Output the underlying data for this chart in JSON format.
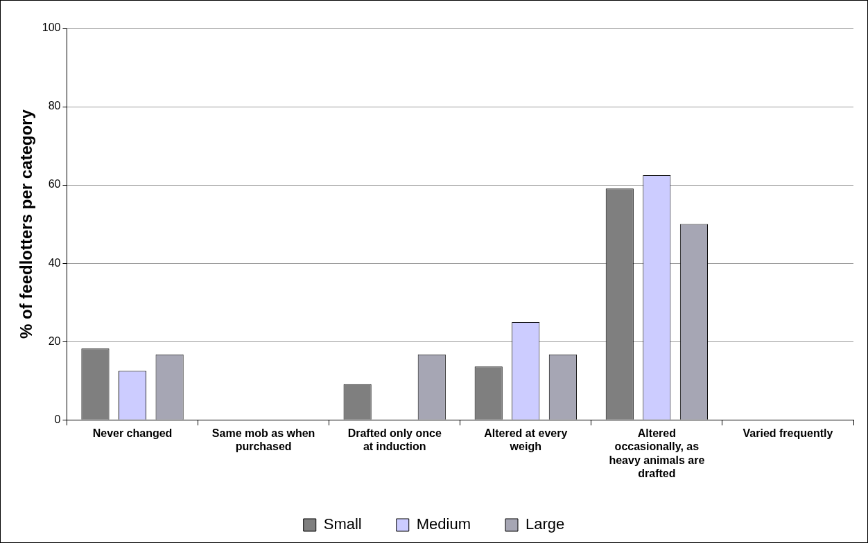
{
  "chart_data": {
    "type": "bar",
    "ylabel": "% of feedlotters per category",
    "categories": [
      "Never changed",
      "Same mob as when purchased",
      "Drafted only once at induction",
      "Altered at every weigh",
      "Altered occasionally, as heavy animals are drafted",
      "Varied frequently"
    ],
    "series": [
      {
        "name": "Small",
        "color": "#7f7f7f",
        "values": [
          18.2,
          0,
          9.1,
          13.6,
          59.1,
          0
        ]
      },
      {
        "name": "Medium",
        "color": "#ccccff",
        "values": [
          12.5,
          0,
          0,
          25,
          62.5,
          0
        ]
      },
      {
        "name": "Large",
        "color": "#a6a6b4",
        "values": [
          16.7,
          0,
          16.7,
          16.7,
          50,
          0
        ]
      }
    ],
    "ylim": [
      0,
      100
    ],
    "yticks": [
      0,
      20,
      40,
      60,
      80,
      100
    ],
    "grid": "y",
    "legend": "bottom"
  }
}
